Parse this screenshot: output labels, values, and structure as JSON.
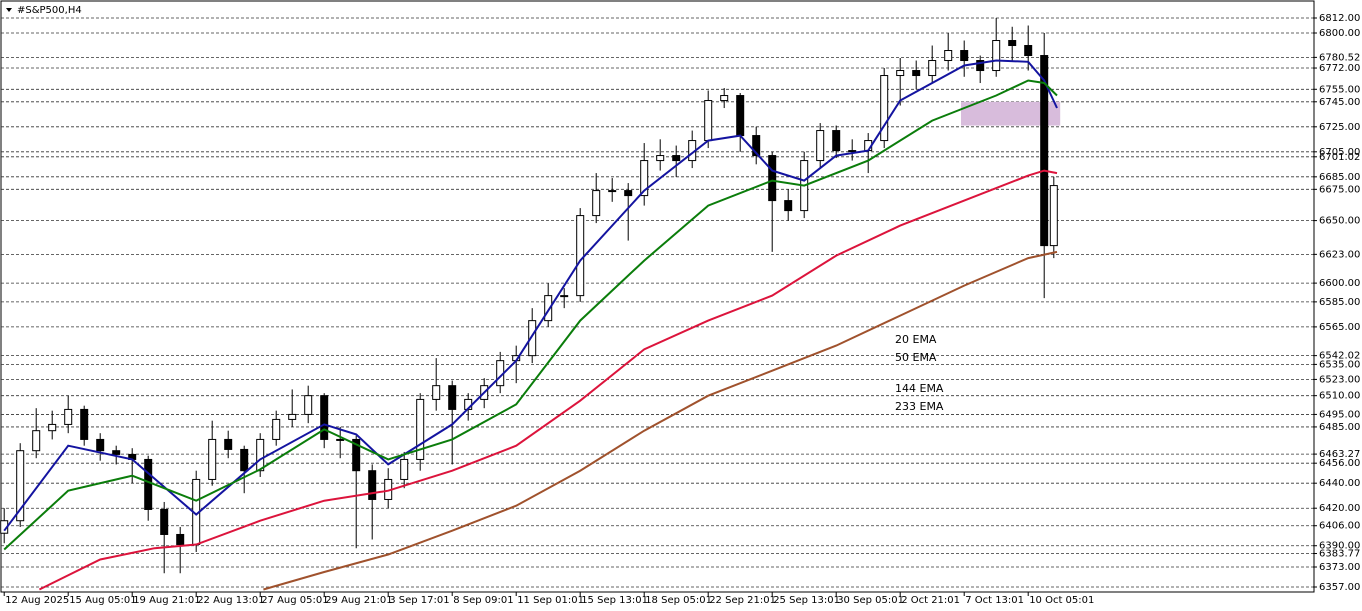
{
  "chart_data": {
    "type": "candlestick",
    "title": "#S&P500,H4",
    "x": [
      0,
      5,
      10,
      15,
      20,
      25,
      30,
      35,
      40,
      45,
      50,
      55,
      60,
      65,
      70,
      75,
      80,
      85,
      90,
      95,
      100,
      105,
      110,
      115,
      120,
      125,
      130,
      135,
      140,
      145,
      150,
      155,
      160,
      165,
      170,
      175,
      180,
      185,
      190,
      195,
      200,
      205,
      210,
      215,
      220,
      225,
      230,
      235,
      240,
      245,
      250,
      255,
      260,
      265,
      270,
      275,
      280,
      285,
      290,
      295,
      300,
      305,
      310,
      315,
      320,
      325,
      328
    ],
    "open": [
      6400,
      6410,
      6466,
      6482,
      6487,
      6499,
      6475,
      6466,
      6463,
      6459,
      6419,
      6399,
      6391,
      6443,
      6475,
      6467,
      6450,
      6475,
      6491,
      6495,
      6510,
      6475,
      6475,
      6450,
      6427,
      6443,
      6459,
      6507,
      6518,
      6499,
      6507,
      6518,
      6538,
      6542,
      6570,
      6590,
      6590,
      6654,
      6674,
      6674,
      6670,
      6698,
      6702,
      6698,
      6714,
      6746,
      6750,
      6718,
      6702,
      6666,
      6658,
      6698,
      6722,
      6706,
      6706,
      6714,
      6766,
      6770,
      6766,
      6778,
      6786,
      6778,
      6770,
      6794,
      6790,
      6782,
      6630
    ],
    "high": [
      6420,
      6472,
      6500,
      6498,
      6510,
      6502,
      6480,
      6470,
      6468,
      6462,
      6425,
      6405,
      6450,
      6490,
      6482,
      6470,
      6480,
      6498,
      6515,
      6518,
      6512,
      6485,
      6478,
      6455,
      6452,
      6465,
      6512,
      6540,
      6522,
      6512,
      6524,
      6545,
      6550,
      6580,
      6600,
      6596,
      6660,
      6688,
      6684,
      6680,
      6712,
      6715,
      6710,
      6722,
      6754,
      6756,
      6752,
      6725,
      6705,
      6675,
      6705,
      6728,
      6726,
      6715,
      6720,
      6772,
      6780,
      6778,
      6790,
      6800,
      6794,
      6782,
      6812,
      6805,
      6806,
      6800,
      6685
    ],
    "low": [
      6392,
      6405,
      6460,
      6475,
      6480,
      6470,
      6458,
      6455,
      6440,
      6410,
      6368,
      6368,
      6385,
      6438,
      6460,
      6432,
      6445,
      6470,
      6485,
      6488,
      6468,
      6460,
      6388,
      6395,
      6420,
      6436,
      6450,
      6498,
      6455,
      6490,
      6500,
      6512,
      6520,
      6536,
      6565,
      6580,
      6585,
      6648,
      6665,
      6634,
      6662,
      6690,
      6685,
      6692,
      6708,
      6740,
      6705,
      6695,
      6625,
      6650,
      6652,
      6692,
      6700,
      6698,
      6688,
      6708,
      6742,
      6755,
      6760,
      6770,
      6765,
      6760,
      6765,
      6778,
      6770,
      6588,
      6620
    ],
    "close": [
      6410,
      6466,
      6482,
      6487,
      6499,
      6475,
      6466,
      6463,
      6459,
      6419,
      6399,
      6391,
      6443,
      6475,
      6467,
      6450,
      6475,
      6491,
      6495,
      6510,
      6475,
      6475,
      6450,
      6427,
      6443,
      6459,
      6507,
      6518,
      6499,
      6507,
      6518,
      6538,
      6542,
      6570,
      6590,
      6590,
      6654,
      6674,
      6674,
      6670,
      6698,
      6702,
      6698,
      6714,
      6746,
      6750,
      6718,
      6702,
      6666,
      6658,
      6698,
      6722,
      6706,
      6706,
      6714,
      6766,
      6770,
      6766,
      6778,
      6786,
      6778,
      6770,
      6794,
      6790,
      6782,
      6630,
      6678
    ],
    "series": [
      {
        "name": "20 EMA",
        "color": "#1414a0",
        "x": [
          0,
          20,
          40,
          60,
          80,
          100,
          110,
          120,
          140,
          160,
          180,
          200,
          220,
          230,
          240,
          250,
          260,
          270,
          280,
          300,
          310,
          320,
          325,
          329
        ],
        "values": [
          6402,
          6470,
          6459,
          6415,
          6459,
          6487,
          6479,
          6455,
          6487,
          6538,
          6618,
          6674,
          6714,
          6718,
          6690,
          6682,
          6702,
          6706,
          6746,
          6774,
          6778,
          6777,
          6762,
          6740
        ]
      },
      {
        "name": "50 EMA",
        "color": "#0b7d0b",
        "x": [
          0,
          20,
          40,
          60,
          80,
          100,
          120,
          140,
          160,
          180,
          200,
          220,
          240,
          250,
          270,
          290,
          310,
          320,
          325,
          329
        ],
        "values": [
          6387,
          6434,
          6446,
          6426,
          6451,
          6483,
          6459,
          6475,
          6503,
          6570,
          6618,
          6662,
          6682,
          6678,
          6698,
          6730,
          6750,
          6762,
          6760,
          6750
        ]
      },
      {
        "name": "144 EMA",
        "color": "#dc143c",
        "x": [
          11,
          30,
          47,
          60,
          80,
          100,
          120,
          140,
          160,
          180,
          200,
          220,
          240,
          260,
          280,
          300,
          320,
          325,
          329
        ],
        "values": [
          6355,
          6379,
          6388,
          6391,
          6410,
          6426,
          6434,
          6450,
          6470,
          6506,
          6547,
          6570,
          6590,
          6622,
          6646,
          6666,
          6686,
          6690,
          6688
        ]
      },
      {
        "name": "233 EMA",
        "color": "#a0522d",
        "x": [
          81,
          100,
          120,
          140,
          160,
          180,
          200,
          220,
          240,
          260,
          280,
          300,
          320,
          329
        ],
        "values": [
          6355,
          6369,
          6383,
          6402,
          6422,
          6450,
          6482,
          6510,
          6530,
          6550,
          6574,
          6598,
          6620,
          6625
        ]
      }
    ],
    "zones": [
      {
        "xlim": [
          299,
          330
        ],
        "ylim": [
          6726,
          6745
        ],
        "color": "#d8bcdc"
      }
    ],
    "xlim": [
      -1,
      409
    ],
    "ylim": [
      6353,
      6826.4
    ],
    "xticks": [
      {
        "value": 0,
        "label": "12 Aug 2025"
      },
      {
        "value": 20,
        "label": "15 Aug 05:01"
      },
      {
        "value": 40,
        "label": "19 Aug 21:01"
      },
      {
        "value": 60,
        "label": "22 Aug 13:01"
      },
      {
        "value": 80,
        "label": "27 Aug 05:01"
      },
      {
        "value": 100,
        "label": "29 Aug 21:01"
      },
      {
        "value": 120,
        "label": "3 Sep 17:01"
      },
      {
        "value": 140,
        "label": "8 Sep 09:01"
      },
      {
        "value": 160,
        "label": "11 Sep 01:01"
      },
      {
        "value": 180,
        "label": "15 Sep 13:01"
      },
      {
        "value": 200,
        "label": "18 Sep 05:01"
      },
      {
        "value": 220,
        "label": "22 Sep 21:01"
      },
      {
        "value": 240,
        "label": "25 Sep 13:01"
      },
      {
        "value": 260,
        "label": "30 Sep 05:01"
      },
      {
        "value": 280,
        "label": "2 Oct 21:01"
      },
      {
        "value": 300,
        "label": "7 Oct 13:01"
      },
      {
        "value": 320,
        "label": "10 Oct 05:01"
      }
    ],
    "yticks": [
      {
        "value": 6812,
        "label": "6812.00"
      },
      {
        "value": 6800,
        "label": "6800.00"
      },
      {
        "value": 6780.52,
        "label": "6780.52"
      },
      {
        "value": 6772,
        "label": "6772.00"
      },
      {
        "value": 6755,
        "label": "6755.00"
      },
      {
        "value": 6745,
        "label": "6745.00"
      },
      {
        "value": 6725,
        "label": "6725.00"
      },
      {
        "value": 6705,
        "label": "6705.00"
      },
      {
        "value": 6701.02,
        "label": "6701.02"
      },
      {
        "value": 6685,
        "label": "6685.00"
      },
      {
        "value": 6675,
        "label": "6675.00"
      },
      {
        "value": 6650,
        "label": "6650.00"
      },
      {
        "value": 6623,
        "label": "6623.00"
      },
      {
        "value": 6600,
        "label": "6600.00"
      },
      {
        "value": 6585,
        "label": "6585.00"
      },
      {
        "value": 6565,
        "label": "6565.00"
      },
      {
        "value": 6542.02,
        "label": "6542.02"
      },
      {
        "value": 6535,
        "label": "6535.00"
      },
      {
        "value": 6523,
        "label": "6523.00"
      },
      {
        "value": 6510,
        "label": "6510.00"
      },
      {
        "value": 6495,
        "label": "6495.00"
      },
      {
        "value": 6485,
        "label": "6485.00"
      },
      {
        "value": 6463.27,
        "label": "6463.27"
      },
      {
        "value": 6456,
        "label": "6456.00"
      },
      {
        "value": 6440,
        "label": "6440.00"
      },
      {
        "value": 6420,
        "label": "6420.00"
      },
      {
        "value": 6406,
        "label": "6406.00"
      },
      {
        "value": 6390,
        "label": "6390.00"
      },
      {
        "value": 6383.77,
        "label": "6383.77"
      },
      {
        "value": 6373,
        "label": "6373.00"
      },
      {
        "value": 6357,
        "label": "6357.00"
      }
    ],
    "grid": true
  }
}
